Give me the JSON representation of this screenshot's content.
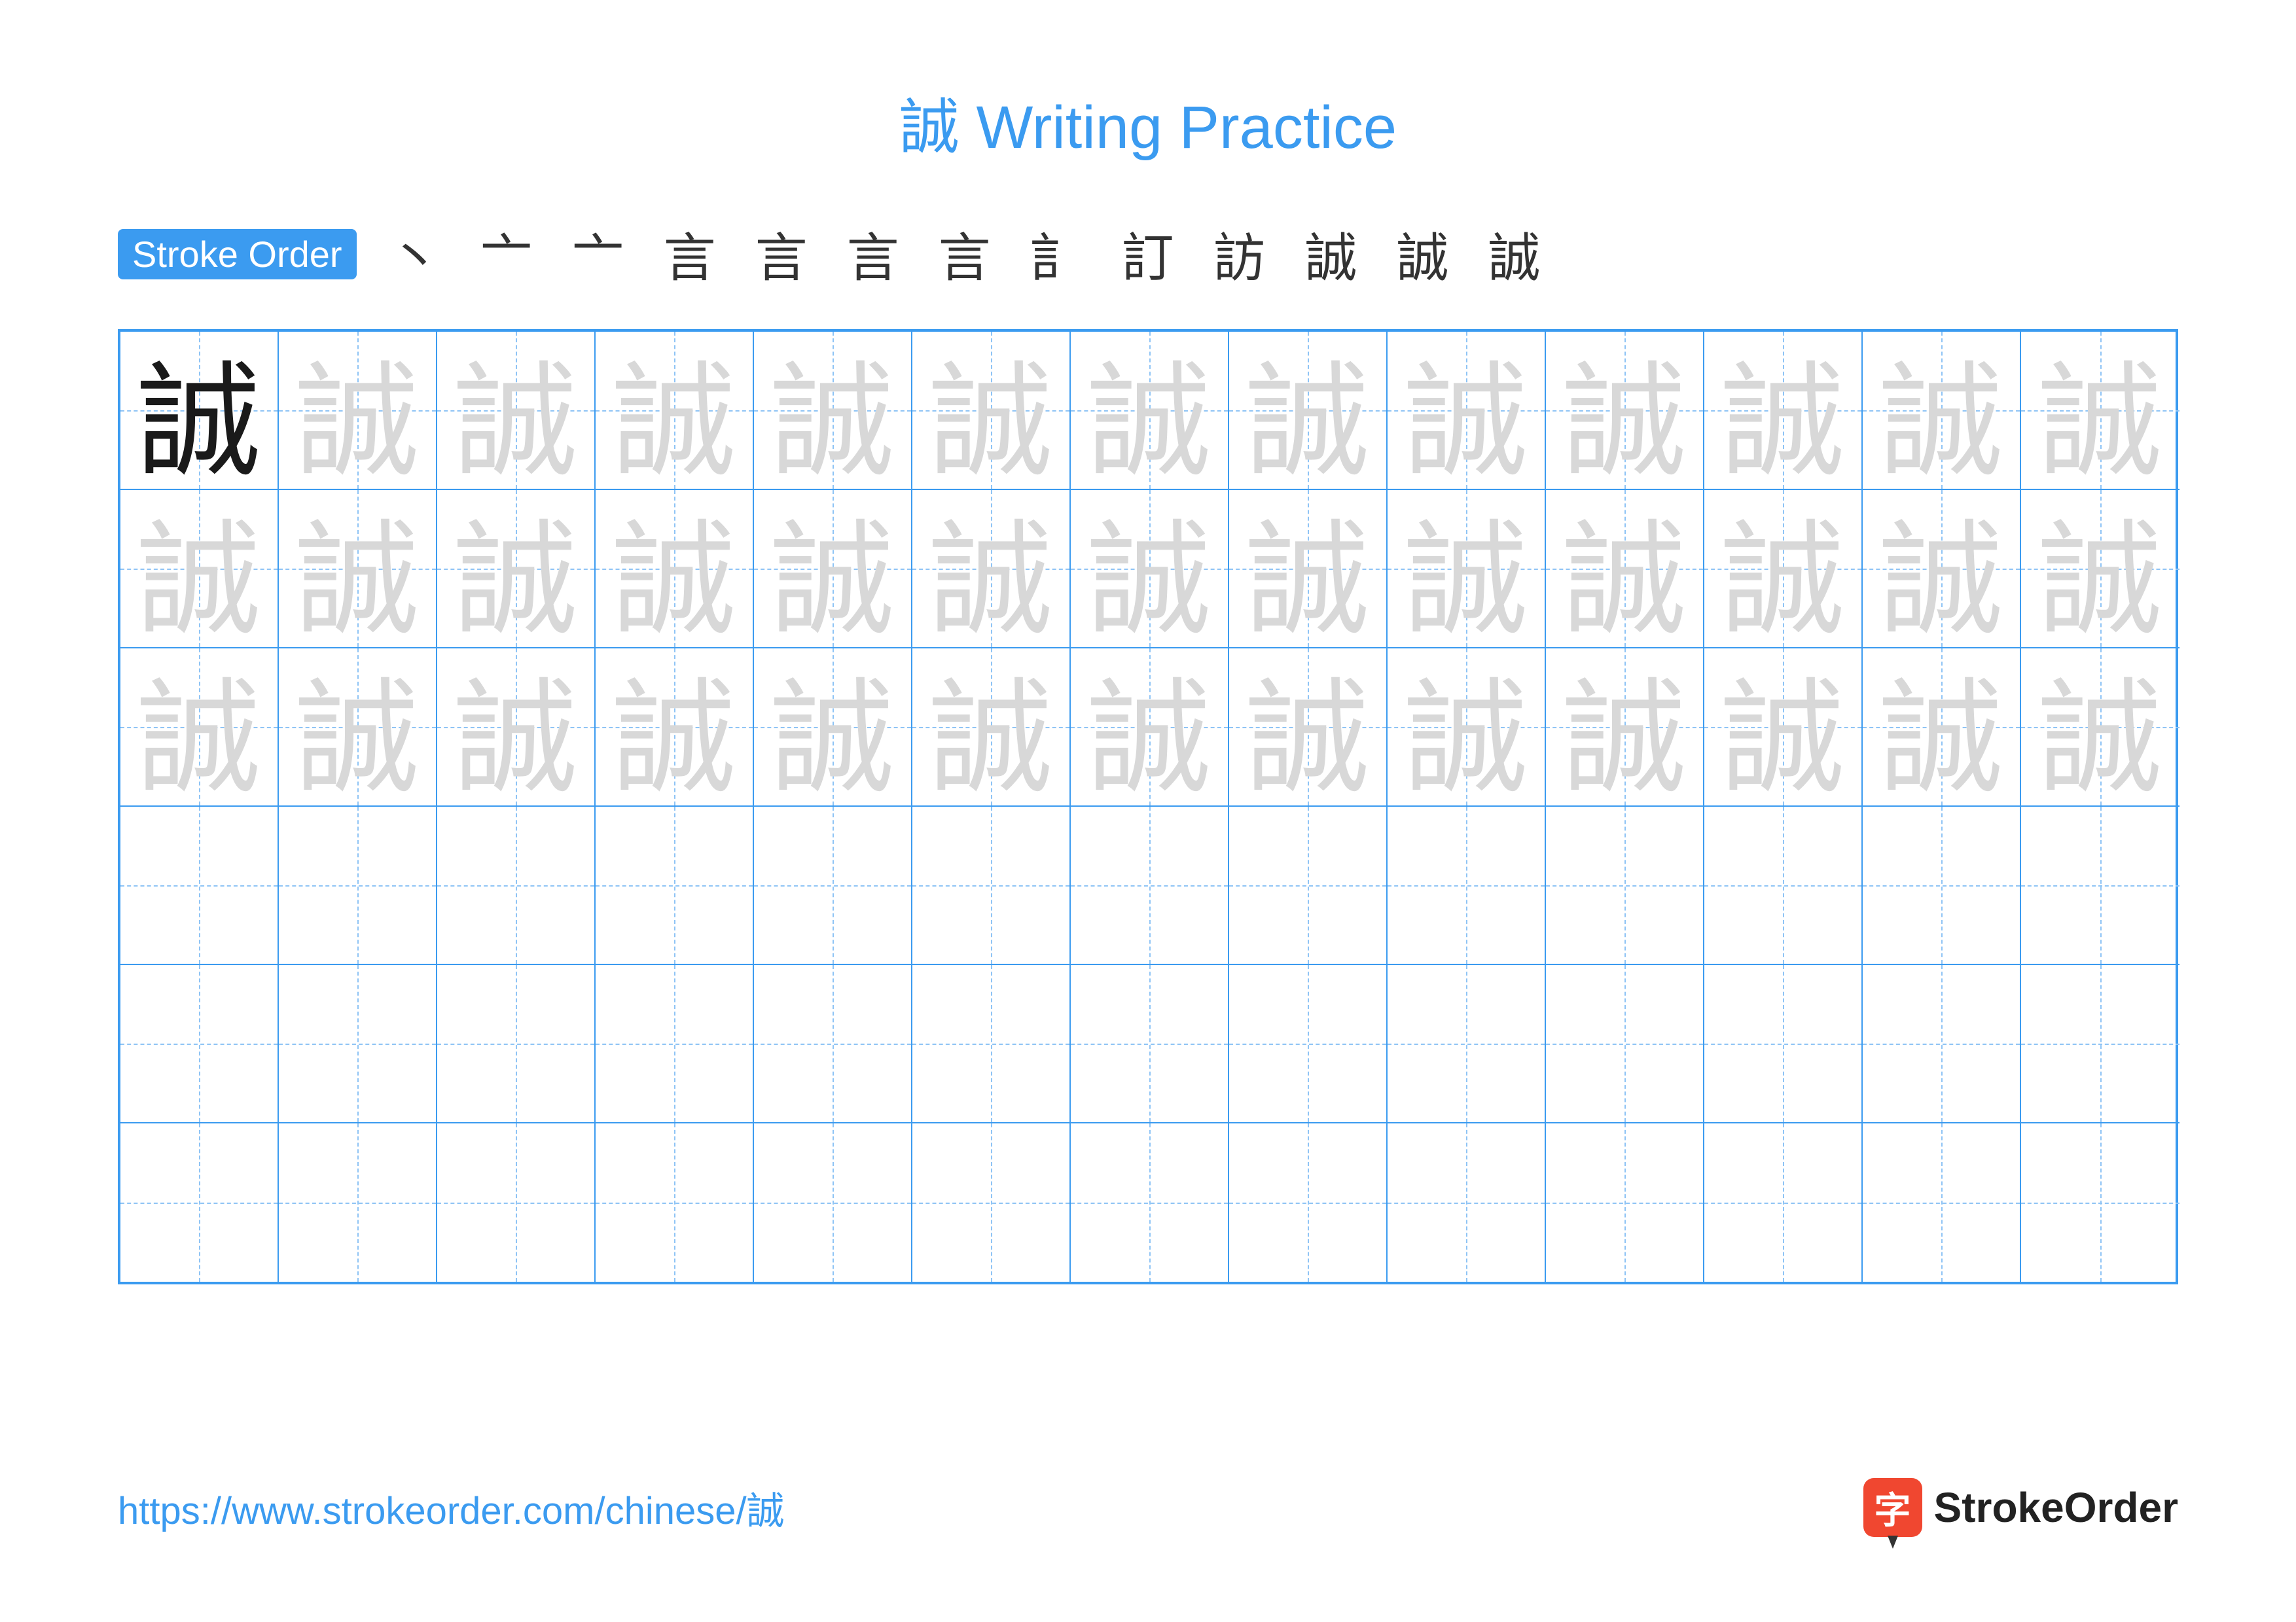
{
  "title": "誠 Writing Practice",
  "title_color": "#3b9bf0",
  "character": "誠",
  "stroke_order_label": "Stroke Order",
  "stroke_badge_bg": "#3b9bf0",
  "stroke_count": 13,
  "stroke_steps": [
    "丶",
    "亠",
    "亠",
    "言",
    "言",
    "言",
    "言",
    "訁",
    "訂",
    "訪",
    "誠",
    "誠",
    "誠"
  ],
  "stroke_step_color_prev": "#333333",
  "stroke_step_color_current": "#d83030",
  "grid": {
    "rows": 6,
    "cols": 13,
    "cell_size": 242,
    "border_color": "#3b9bf0",
    "guide_color": "#8fc4f5",
    "reference_char_color": "#1a1a1a",
    "trace_char_color": "#d8d8d8",
    "char_fontsize": 190,
    "trace_rows": 3,
    "reference_cell": [
      0,
      0
    ]
  },
  "footer_url": "https://www.strokeorder.com/chinese/誠",
  "footer_url_color": "#3b9bf0",
  "logo": {
    "badge_char": "字",
    "badge_bg": "#f04730",
    "text": "StrokeOrder",
    "text_color": "#222222"
  },
  "background_color": "#ffffff"
}
